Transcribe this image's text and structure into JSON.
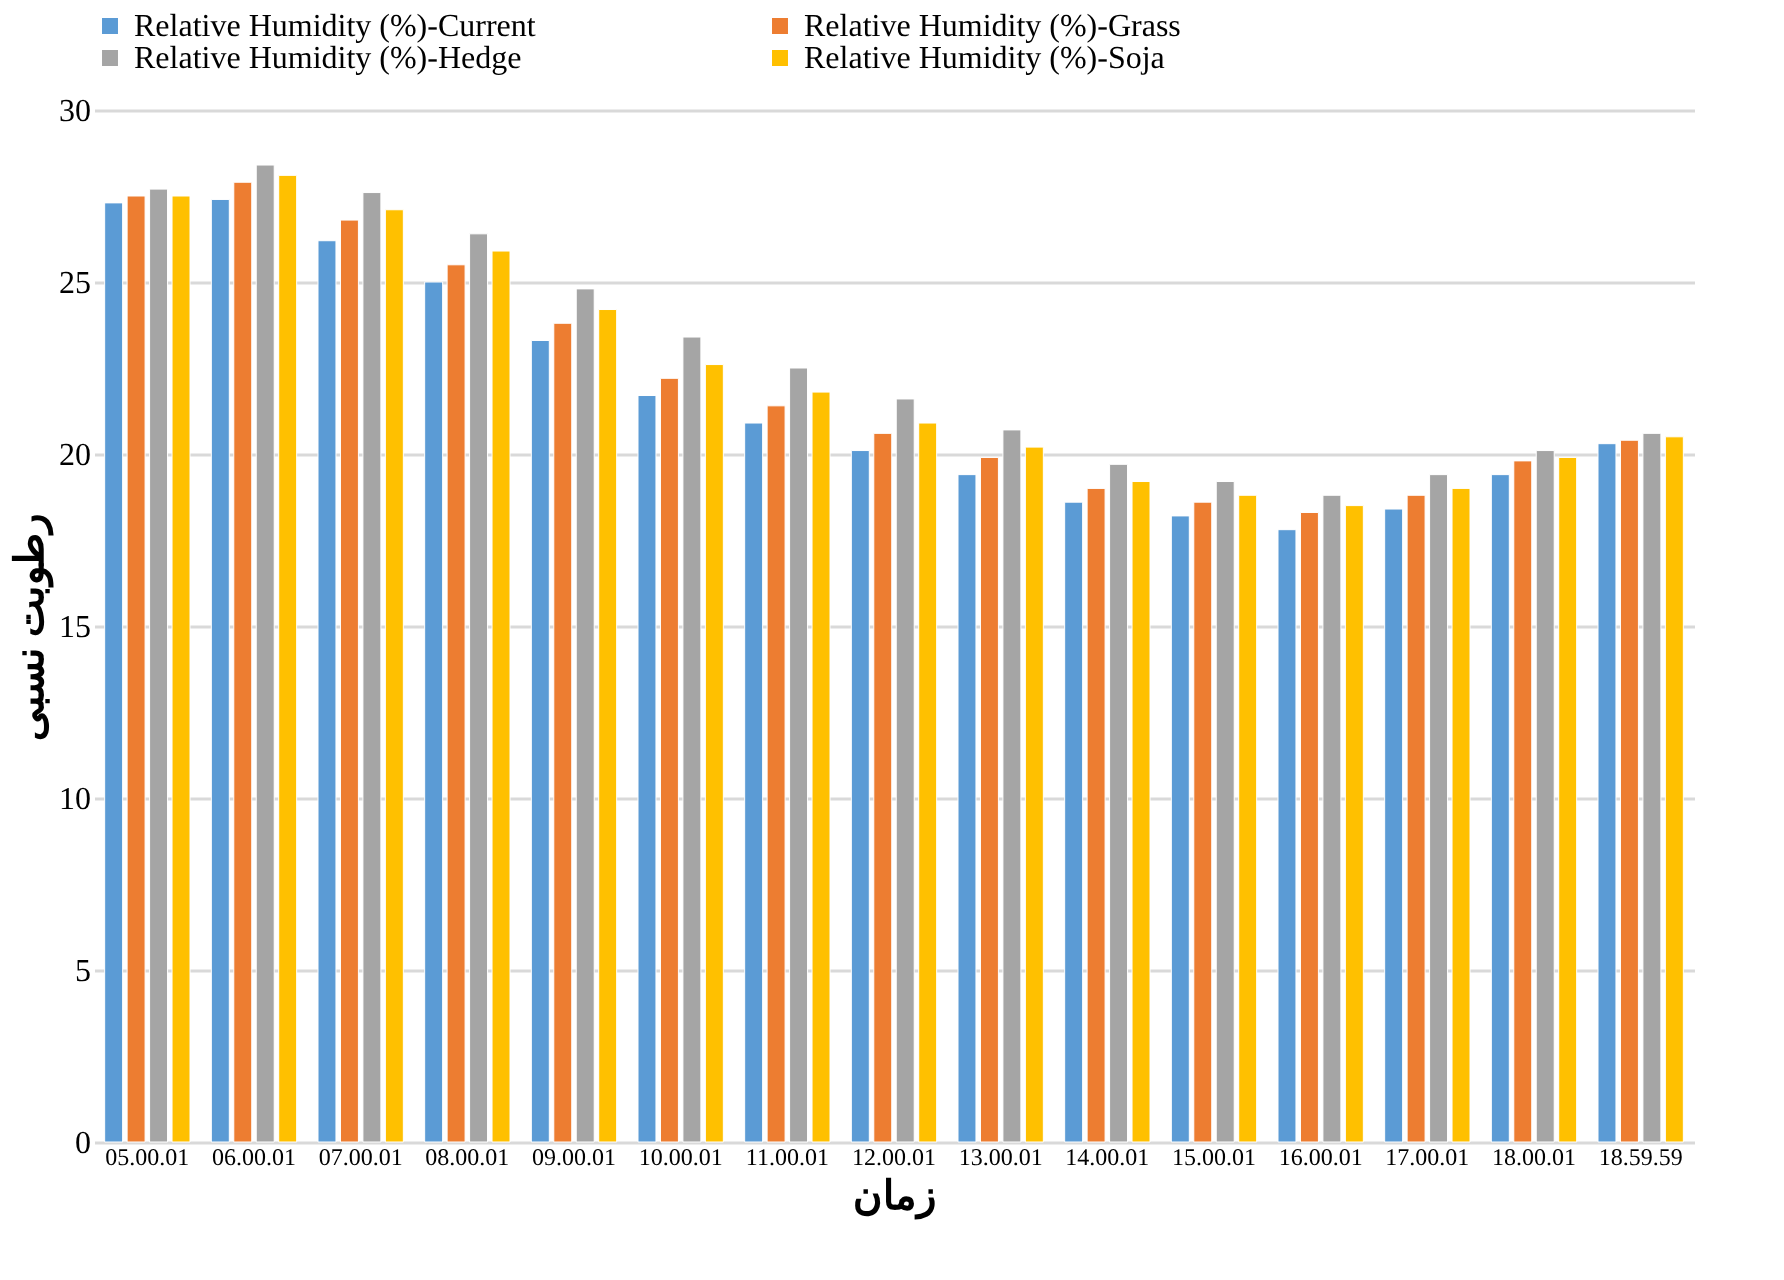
{
  "chart_data": {
    "type": "bar",
    "xlabel": "زمان",
    "ylabel": "رطوبت نسبی",
    "categories": [
      "05.00.01",
      "06.00.01",
      "07.00.01",
      "08.00.01",
      "09.00.01",
      "10.00.01",
      "11.00.01",
      "12.00.01",
      "13.00.01",
      "14.00.01",
      "15.00.01",
      "16.00.01",
      "17.00.01",
      "18.00.01",
      "18.59.59"
    ],
    "series": [
      {
        "name": "Relative Humidity  (%)-Current",
        "color": "#5b9bd5",
        "values": [
          27.3,
          27.4,
          26.2,
          25.0,
          23.3,
          21.7,
          20.9,
          20.1,
          19.4,
          18.6,
          18.2,
          17.8,
          18.4,
          19.4,
          20.3
        ]
      },
      {
        "name": "Relative Humidity  (%)-Grass",
        "color": "#ed7d31",
        "values": [
          27.5,
          27.9,
          26.8,
          25.5,
          23.8,
          22.2,
          21.4,
          20.6,
          19.9,
          19.0,
          18.6,
          18.3,
          18.8,
          19.8,
          20.4
        ]
      },
      {
        "name": "Relative Humidity  (%)-Hedge",
        "color": "#a5a5a5",
        "values": [
          27.7,
          28.4,
          27.6,
          26.4,
          24.8,
          23.4,
          22.5,
          21.6,
          20.7,
          19.7,
          19.2,
          18.8,
          19.4,
          20.1,
          20.6
        ]
      },
      {
        "name": "Relative Humidity  (%)-Soja",
        "color": "#ffc000",
        "values": [
          27.5,
          28.1,
          27.1,
          25.9,
          24.2,
          22.6,
          21.8,
          20.9,
          20.2,
          19.2,
          18.8,
          18.5,
          19.0,
          19.9,
          20.5
        ]
      }
    ],
    "ylim": [
      0,
      30
    ],
    "yticks": [
      0,
      5,
      10,
      15,
      20,
      25,
      30
    ],
    "grid": "y",
    "legend": "top"
  }
}
